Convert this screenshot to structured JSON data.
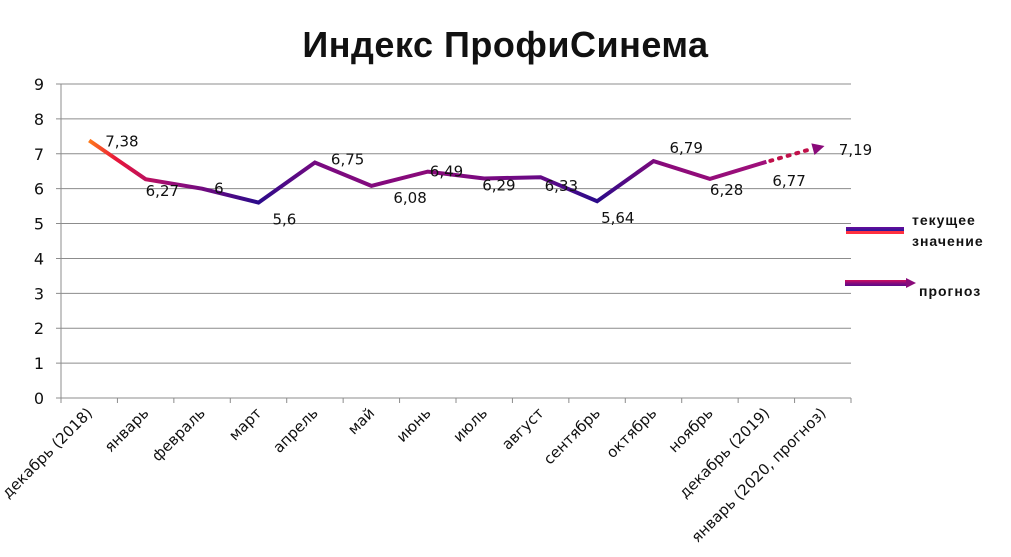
{
  "chart_data": {
    "type": "line",
    "title": "Индекс ПрофиСинема",
    "xlabel": "",
    "ylabel": "",
    "ylim": [
      0,
      9
    ],
    "yticks": [
      0,
      1,
      2,
      3,
      4,
      5,
      6,
      7,
      8,
      9
    ],
    "grid": true,
    "legend_position": "right",
    "categories": [
      "декабрь (2018)",
      "январь",
      "февраль",
      "март",
      "апрель",
      "май",
      "июнь",
      "июль",
      "август",
      "сентябрь",
      "октябрь",
      "ноябрь",
      "декабрь (2019)",
      "январь (2020, прогноз)"
    ],
    "series": [
      {
        "name": "текущее значение",
        "values": [
          7.38,
          6.27,
          6.0,
          5.6,
          6.75,
          6.08,
          6.49,
          6.29,
          6.33,
          5.64,
          6.79,
          6.28,
          6.77,
          null
        ]
      },
      {
        "name": "прогноз",
        "values": [
          null,
          null,
          null,
          null,
          null,
          null,
          null,
          null,
          null,
          null,
          null,
          null,
          6.77,
          7.19
        ]
      }
    ],
    "data_labels": [
      "7,38",
      "6,27",
      "6",
      "5,6",
      "6,75",
      "6,08",
      "6,49",
      "6,29",
      "6,33",
      "5,64",
      "6,79",
      "6,28",
      "6,77",
      "7,19"
    ]
  },
  "legend": {
    "current_line1": "текущее",
    "current_line2": "значение",
    "forecast": "прогноз"
  },
  "colors": {
    "line_start": "#ff6a1a",
    "line_red": "#e0103a",
    "line_purple": "#8a0a7a",
    "line_dark_blue": "#2a0a8a",
    "forecast": "#b0104a",
    "grid": "#8c8c8c"
  }
}
